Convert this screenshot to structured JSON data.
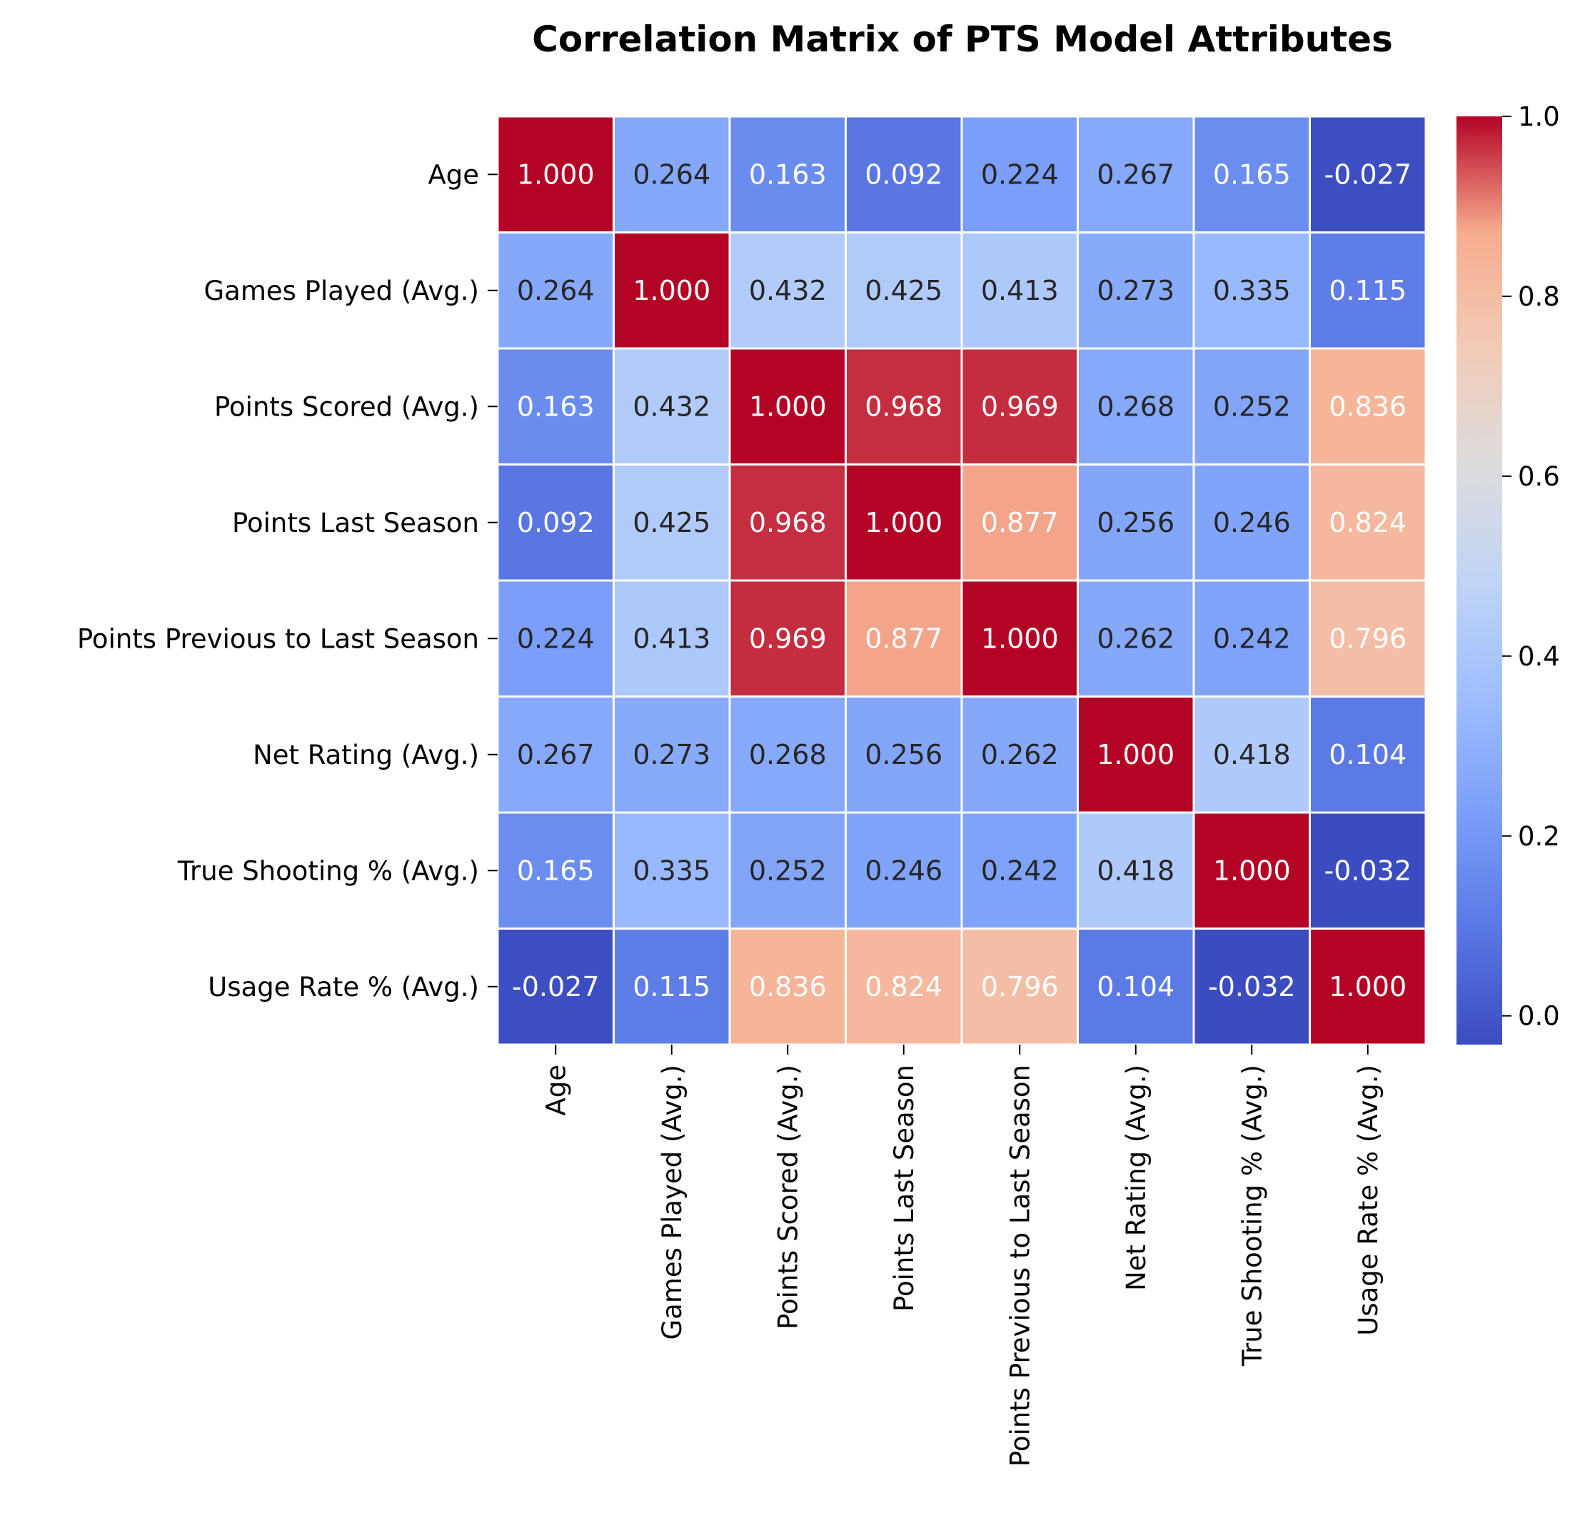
{
  "chart_data": {
    "type": "heatmap",
    "title": "Correlation Matrix of PTS Model Attributes",
    "xlabel": "",
    "ylabel": "",
    "row_labels": [
      "Age",
      "Games Played (Avg.)",
      "Points Scored (Avg.)",
      "Points Last Season",
      "Points Previous to Last Season",
      "Net Rating (Avg.)",
      "True Shooting % (Avg.)",
      "Usage Rate % (Avg.)"
    ],
    "col_labels": [
      "Age",
      "Games Played (Avg.)",
      "Points Scored (Avg.)",
      "Points Last Season",
      "Points Previous to Last Season",
      "Net Rating (Avg.)",
      "True Shooting % (Avg.)",
      "Usage Rate % (Avg.)"
    ],
    "values": [
      [
        1.0,
        0.264,
        0.163,
        0.092,
        0.224,
        0.267,
        0.165,
        -0.027
      ],
      [
        0.264,
        1.0,
        0.432,
        0.425,
        0.413,
        0.273,
        0.335,
        0.115
      ],
      [
        0.163,
        0.432,
        1.0,
        0.968,
        0.969,
        0.268,
        0.252,
        0.836
      ],
      [
        0.092,
        0.425,
        0.968,
        1.0,
        0.877,
        0.256,
        0.246,
        0.824
      ],
      [
        0.224,
        0.413,
        0.969,
        0.877,
        1.0,
        0.262,
        0.242,
        0.796
      ],
      [
        0.267,
        0.273,
        0.268,
        0.256,
        0.262,
        1.0,
        0.418,
        0.104
      ],
      [
        0.165,
        0.335,
        0.252,
        0.246,
        0.242,
        0.418,
        1.0,
        -0.032
      ],
      [
        -0.027,
        0.115,
        0.836,
        0.824,
        0.796,
        0.104,
        -0.032,
        1.0
      ]
    ],
    "colormap": "coolwarm",
    "value_range": [
      -0.032,
      1.0
    ],
    "colorbar_ticks": [
      "0.0",
      "0.2",
      "0.4",
      "0.6",
      "0.8",
      "1.0"
    ],
    "grid": false,
    "legend": "colorbar-right"
  }
}
